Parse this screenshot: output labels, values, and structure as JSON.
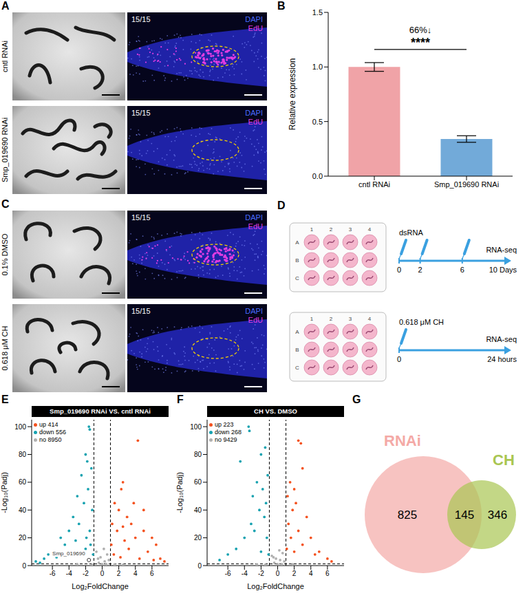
{
  "figure_panels": {
    "A": {
      "letter": "A",
      "stains": [
        {
          "name": "DAPI",
          "color": "#4a6cff"
        },
        {
          "name": "EdU",
          "color": "#e23ce2"
        }
      ],
      "rows": [
        {
          "label": "cntl RNAi",
          "count": "15/15",
          "edu_signal": true
        },
        {
          "label": "Smp_019690 RNAi",
          "count": "15/15",
          "edu_signal": false
        }
      ]
    },
    "C": {
      "letter": "C",
      "stains": [
        {
          "name": "DAPI",
          "color": "#4a6cff"
        },
        {
          "name": "EdU",
          "color": "#e23ce2"
        }
      ],
      "rows": [
        {
          "label": "0.1% DMSO",
          "count": "15/15",
          "edu_signal": true
        },
        {
          "label": "0.618 μM CH",
          "count": "15/15",
          "edu_signal": false
        }
      ]
    },
    "D": {
      "letter": "D",
      "plate": {
        "columns": [
          "1",
          "2",
          "3",
          "4"
        ],
        "rows": [
          "A",
          "B",
          "C"
        ]
      },
      "timelines": [
        {
          "treatment": "dsRNA",
          "ticks": [
            "0",
            "2",
            "6"
          ],
          "end": "RNA-seq",
          "duration": "10 Days"
        },
        {
          "treatment": "0.618 μM CH",
          "ticks": [
            "0"
          ],
          "end": "RNA-seq",
          "duration": "24 hours"
        }
      ]
    },
    "G": {
      "letter": "G",
      "sets": [
        {
          "name": "RNAi",
          "color": "#f4a9a6",
          "only": 825
        },
        {
          "name": "CH",
          "color": "#a9c652",
          "only": 346
        }
      ],
      "overlap": 145
    }
  },
  "chart_letters": [
    "B",
    "E",
    "F"
  ],
  "chart_data": [
    {
      "type": "bar",
      "categories": [
        "cntl RNAi",
        "Smp_019690 RNAi"
      ],
      "values": [
        1.0,
        0.34
      ],
      "errors": [
        0.04,
        0.03
      ],
      "colors": [
        "#f0a3a7",
        "#72aad9"
      ],
      "y_label": "Relative expression",
      "ylim": [
        0,
        1.5
      ],
      "yticks": [
        {
          "value": 0,
          "label": "0.0"
        },
        0.5,
        {
          "value": 1,
          "label": "1.0"
        },
        1.5
      ],
      "annotations": [
        "****",
        "66%↓"
      ]
    },
    {
      "type": "scatter",
      "title": "Smp_019690 RNAi VS. cntl RNAi",
      "x_label": "Log₂FoldChange",
      "y_label": "-Log₁₀(Padj)",
      "xlim": [
        -8.5,
        8
      ],
      "ylim": [
        0,
        105
      ],
      "xticks": [
        -6,
        -4,
        -2,
        0,
        2,
        4,
        6
      ],
      "yticks": [
        0,
        20,
        40,
        60,
        80,
        100
      ],
      "legend": "top-left",
      "cutoff_lines": {
        "x": [
          -1,
          1
        ],
        "y": [
          1.3
        ]
      },
      "annotations": [
        {
          "text": "Smp_019690",
          "x": -1.6,
          "y": 4
        }
      ],
      "series": [
        {
          "name": "up 414",
          "color": "#f4511e",
          "x": [
            4.3,
            2.5,
            2.3,
            1.5,
            2.0,
            3.0,
            3.5,
            5.0,
            6.0,
            6.5,
            7.0,
            5.5,
            4.0,
            1.2,
            1.8,
            2.7,
            3.2,
            1.4,
            2.2,
            4.5,
            5.0,
            3.8,
            1.1,
            2.5,
            6.2,
            7.5
          ],
          "values": [
            90,
            60,
            55,
            45,
            40,
            35,
            30,
            25,
            20,
            15,
            5,
            10,
            20,
            30,
            25,
            18,
            12,
            8,
            6,
            5,
            40,
            45,
            15,
            28,
            4,
            3
          ]
        },
        {
          "name": "down 556",
          "color": "#17a2b0",
          "x": [
            -1.6,
            -1.5,
            -2.0,
            -1.8,
            -1.3,
            -2.5,
            -3.0,
            -1.7,
            -2.2,
            -1.2,
            -3.5,
            -4.0,
            -2.8,
            -1.5,
            -5.0,
            -6.0,
            -7.0,
            -8.0,
            -6.5,
            -4.5,
            -3.2,
            -2.0,
            -1.4,
            -1.1,
            -2.6,
            -5.5,
            -7.5,
            -1.9,
            -3.8
          ],
          "values": [
            100,
            98,
            80,
            75,
            70,
            65,
            50,
            55,
            45,
            40,
            35,
            25,
            30,
            25,
            20,
            10,
            5,
            3,
            8,
            15,
            18,
            12,
            15,
            8,
            8,
            6,
            2,
            20,
            10
          ]
        },
        {
          "name": "no 8950",
          "color": "#b0b0b0",
          "x": [
            0,
            0.3,
            -0.4,
            0.6,
            -0.7,
            0.8,
            -0.2,
            0.2,
            -0.5,
            0.5,
            -1.2,
            1.5,
            -3.0,
            2.5
          ],
          "values": [
            1,
            3,
            2,
            8,
            10,
            4,
            6,
            12,
            5,
            1,
            0.5,
            0.8,
            1,
            0.5
          ]
        }
      ]
    },
    {
      "type": "scatter",
      "title": "CH VS. DMSO",
      "x_label": "Log₂FoldChange",
      "y_label": "-Log₁₀(Padj)",
      "xlim": [
        -8.5,
        8
      ],
      "ylim": [
        0,
        105
      ],
      "xticks": [
        -6,
        -4,
        -2,
        0,
        2,
        4,
        6
      ],
      "yticks": [
        0,
        20,
        40,
        60,
        80,
        100
      ],
      "legend": "top-left",
      "cutoff_lines": {
        "x": [
          -1,
          1
        ],
        "y": [
          1.3
        ]
      },
      "annotations": [],
      "series": [
        {
          "name": "up 223",
          "color": "#f4511e",
          "x": [
            2.5,
            2.8,
            3.0,
            1.5,
            2.0,
            1.2,
            2.2,
            1.8,
            3.5,
            1.3,
            2.5,
            4.0,
            1.6,
            3.0,
            5.0,
            6.0,
            6.5,
            2.0,
            1.1,
            4.5
          ],
          "values": [
            90,
            88,
            70,
            60,
            55,
            50,
            45,
            40,
            35,
            30,
            25,
            20,
            20,
            15,
            10,
            5,
            3,
            10,
            12,
            8
          ]
        },
        {
          "name": "down 268",
          "color": "#17a2b0",
          "x": [
            -3.5,
            -3.4,
            -4.5,
            -1.5,
            -2.0,
            -1.2,
            -2.5,
            -1.8,
            -3.0,
            -1.4,
            -2.2,
            -1.6,
            -3.2,
            -2.8,
            -4.0,
            -1.3,
            -5.0,
            -6.0,
            -2.0,
            -7.0,
            -1.1
          ],
          "values": [
            100,
            97,
            75,
            85,
            80,
            65,
            60,
            55,
            50,
            45,
            40,
            35,
            30,
            25,
            20,
            20,
            12,
            8,
            10,
            4,
            8
          ]
        },
        {
          "name": "no 9429",
          "color": "#b0b0b0",
          "x": [
            0,
            0.3,
            -0.4,
            0.6,
            -0.7,
            0.8,
            -0.2,
            0.2,
            -0.5,
            0.5,
            -1.5,
            1.8,
            -2.5
          ],
          "values": [
            1,
            4,
            2,
            9,
            7,
            3,
            5,
            11,
            6,
            1,
            0.6,
            0.9,
            0.7
          ]
        }
      ]
    }
  ]
}
